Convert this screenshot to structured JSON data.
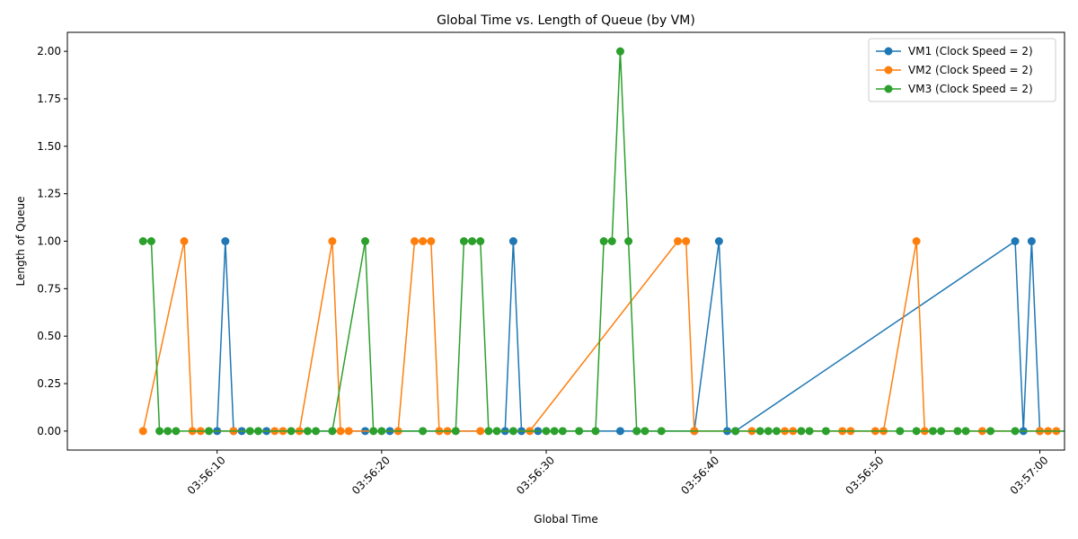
{
  "chart_data": {
    "type": "line",
    "title": "Global Time vs. Length of Queue (by VM)",
    "xlabel": "Global Time",
    "ylabel": "Length of Queue",
    "xlim": [
      0.9,
      61.5
    ],
    "ylim": [
      -0.1,
      2.1
    ],
    "x_unit": "seconds after 03:56:00",
    "x_ticks": [
      10,
      20,
      30,
      40,
      50,
      60
    ],
    "x_tick_labels": [
      "03:56:10",
      "03:56:20",
      "03:56:30",
      "03:56:40",
      "03:56:50",
      "03:57:00"
    ],
    "y_ticks": [
      0.0,
      0.25,
      0.5,
      0.75,
      1.0,
      1.25,
      1.5,
      1.75,
      2.0
    ],
    "y_tick_labels": [
      "0.00",
      "0.25",
      "0.50",
      "0.75",
      "1.00",
      "1.25",
      "1.50",
      "1.75",
      "2.00"
    ],
    "legend_position": "top-right",
    "series": [
      {
        "name": "VM1 (Clock Speed = 2)",
        "color": "#1f77b4",
        "x": [
          10.0,
          10.5,
          11.0,
          11.5,
          13.0,
          19.0,
          20.5,
          27.5,
          28.0,
          28.5,
          29.5,
          34.5,
          35.5,
          39.0,
          40.5,
          41.0,
          41.5,
          58.5,
          59.0,
          59.5,
          60.0,
          62.0,
          64.0
        ],
        "y": [
          0,
          1,
          0,
          0,
          0,
          0,
          0,
          0,
          1,
          0,
          0,
          0,
          0,
          0,
          1,
          0,
          0,
          1,
          0,
          1,
          0,
          0,
          0
        ]
      },
      {
        "name": "VM2 (Clock Speed = 2)",
        "color": "#ff7f0e",
        "x": [
          5.5,
          8.0,
          8.5,
          9.0,
          11.0,
          13.5,
          14.0,
          15.0,
          17.0,
          17.5,
          18.0,
          21.0,
          22.0,
          22.5,
          23.0,
          23.5,
          24.0,
          26.0,
          29.0,
          38.0,
          38.5,
          39.0,
          42.5,
          44.5,
          45.0,
          48.0,
          48.5,
          50.0,
          50.5,
          52.5,
          53.0,
          56.5,
          60.0,
          60.5,
          61.0
        ],
        "y": [
          0,
          1,
          0,
          0,
          0,
          0,
          0,
          0,
          1,
          0,
          0,
          0,
          1,
          1,
          1,
          0,
          0,
          0,
          0,
          1,
          1,
          0,
          0,
          0,
          0,
          0,
          0,
          0,
          0,
          1,
          0,
          0,
          0,
          0,
          0
        ]
      },
      {
        "name": "VM3 (Clock Speed = 2)",
        "color": "#2ca02c",
        "x": [
          5.5,
          6.0,
          6.5,
          7.0,
          7.5,
          9.5,
          12.0,
          12.5,
          14.5,
          15.5,
          16.0,
          17.0,
          19.0,
          19.5,
          20.0,
          22.5,
          24.5,
          25.0,
          25.5,
          26.0,
          26.5,
          27.0,
          28.0,
          30.0,
          30.5,
          31.0,
          32.0,
          33.0,
          33.5,
          34.0,
          34.5,
          35.0,
          35.5,
          36.0,
          37.0,
          41.5,
          43.0,
          43.5,
          44.0,
          45.5,
          46.0,
          47.0,
          51.5,
          52.5,
          53.5,
          54.0,
          55.0,
          55.5,
          57.0,
          58.5,
          62.5,
          63.0,
          64.5,
          65.0
        ],
        "y": [
          1,
          1,
          0,
          0,
          0,
          0,
          0,
          0,
          0,
          0,
          0,
          0,
          1,
          0,
          0,
          0,
          0,
          1,
          1,
          1,
          0,
          0,
          0,
          0,
          0,
          0,
          0,
          0,
          1,
          1,
          2,
          1,
          0,
          0,
          0,
          0,
          0,
          0,
          0,
          0,
          0,
          0,
          0,
          0,
          0,
          0,
          0,
          0,
          0,
          0,
          0,
          0,
          0,
          0
        ]
      }
    ]
  }
}
